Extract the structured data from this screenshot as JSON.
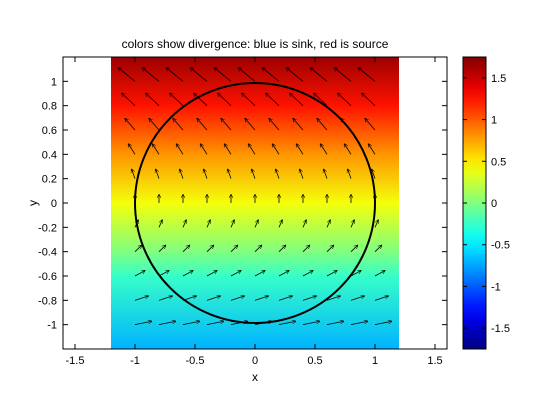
{
  "chart_data": {
    "type": "heatmap",
    "title": "colors show divergence: blue is sink, red is source",
    "xlabel": "x",
    "ylabel": "y",
    "xlim": [
      -1.6,
      1.6
    ],
    "ylim": [
      -1.2,
      1.2
    ],
    "xticks": [
      -1.5,
      -1,
      -0.5,
      0,
      0.5,
      1,
      1.5
    ],
    "xtick_labels": [
      "-1.5",
      "-1",
      "-0.5",
      "0",
      "0.5",
      "1",
      "1.5"
    ],
    "yticks": [
      -1,
      -0.8,
      -0.6,
      -0.4,
      -0.2,
      0,
      0.2,
      0.4,
      0.6,
      0.8,
      1
    ],
    "ytick_labels": [
      "-1",
      "-0.8",
      "-0.6",
      "-0.4",
      "-0.2",
      "0",
      "0.2",
      "0.4",
      "0.6",
      "0.8",
      "1"
    ],
    "heatmap_extent": {
      "x": [
        -1.2,
        1.2
      ],
      "y": [
        -1.2,
        1.2
      ]
    },
    "divergence_profile": {
      "y": [
        -1.2,
        -0.6,
        -0.4,
        0,
        0.4,
        0.8,
        1.2
      ],
      "value": [
        -0.7,
        -0.25,
        0.0,
        0.4,
        0.8,
        1.25,
        1.65
      ]
    },
    "circle": {
      "center": [
        0,
        0
      ],
      "radius": 1
    },
    "quiver": {
      "grid": [
        -1,
        -0.8,
        -0.6,
        -0.4,
        -0.2,
        0,
        0.2,
        0.4,
        0.6,
        0.8,
        1
      ],
      "field": "u = -y, v = 0.3*y + 0.5"
    },
    "colorbar": {
      "range": [
        -1.75,
        1.75
      ],
      "ticks": [
        -1.5,
        -1,
        -0.5,
        0,
        0.5,
        1,
        1.5
      ],
      "tick_labels": [
        "-1.5",
        "-1",
        "-0.5",
        "0",
        "0.5",
        "1",
        "1.5"
      ],
      "colormap": "jet"
    },
    "grid": false,
    "legend": "none"
  }
}
